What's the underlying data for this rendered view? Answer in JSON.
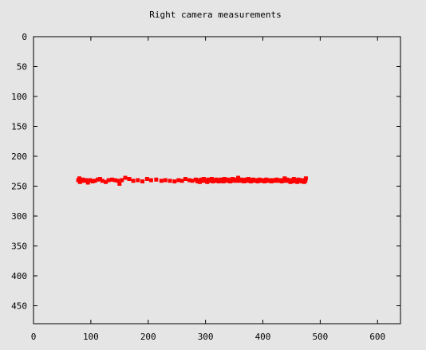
{
  "chart_data": {
    "type": "scatter",
    "title": "Right camera measurements",
    "xlabel": "",
    "ylabel": "",
    "xlim": [
      0,
      640
    ],
    "ylim": [
      0,
      480
    ],
    "y_inverted": true,
    "xticks": [
      0,
      100,
      200,
      300,
      400,
      500,
      600
    ],
    "yticks": [
      0,
      50,
      100,
      150,
      200,
      250,
      300,
      350,
      400,
      450
    ],
    "grid": false,
    "point_color": "#ff0000",
    "series": [
      {
        "points": [
          [
            78,
            240
          ],
          [
            80,
            237
          ],
          [
            81,
            243
          ],
          [
            83,
            241
          ],
          [
            86,
            239
          ],
          [
            89,
            241
          ],
          [
            92,
            240
          ],
          [
            95,
            244
          ],
          [
            99,
            240
          ],
          [
            103,
            242
          ],
          [
            107,
            241
          ],
          [
            112,
            239
          ],
          [
            116,
            238
          ],
          [
            120,
            241
          ],
          [
            126,
            243
          ],
          [
            131,
            240
          ],
          [
            137,
            239
          ],
          [
            142,
            240
          ],
          [
            147,
            241
          ],
          [
            150,
            246
          ],
          [
            154,
            240
          ],
          [
            160,
            236
          ],
          [
            167,
            238
          ],
          [
            174,
            241
          ],
          [
            182,
            240
          ],
          [
            190,
            242
          ],
          [
            198,
            238
          ],
          [
            205,
            240
          ],
          [
            214,
            239
          ],
          [
            223,
            241
          ],
          [
            230,
            240
          ],
          [
            238,
            241
          ],
          [
            246,
            242
          ],
          [
            253,
            240
          ],
          [
            259,
            241
          ],
          [
            265,
            238
          ],
          [
            272,
            240
          ],
          [
            277,
            241
          ],
          [
            283,
            239
          ],
          [
            286,
            242
          ],
          [
            288,
            240
          ],
          [
            290,
            243
          ],
          [
            293,
            239
          ],
          [
            295,
            241
          ],
          [
            297,
            238
          ],
          [
            299,
            241
          ],
          [
            301,
            240
          ],
          [
            303,
            243
          ],
          [
            305,
            239
          ],
          [
            307,
            241
          ],
          [
            309,
            240
          ],
          [
            311,
            238
          ],
          [
            313,
            242
          ],
          [
            315,
            240
          ],
          [
            317,
            241
          ],
          [
            319,
            239
          ],
          [
            321,
            240
          ],
          [
            323,
            242
          ],
          [
            325,
            241
          ],
          [
            327,
            239
          ],
          [
            329,
            240
          ],
          [
            331,
            242
          ],
          [
            333,
            238
          ],
          [
            335,
            240
          ],
          [
            337,
            241
          ],
          [
            339,
            239
          ],
          [
            341,
            240
          ],
          [
            343,
            242
          ],
          [
            345,
            240
          ],
          [
            347,
            238
          ],
          [
            349,
            241
          ],
          [
            351,
            240
          ],
          [
            353,
            239
          ],
          [
            355,
            241
          ],
          [
            357,
            236
          ],
          [
            359,
            240
          ],
          [
            361,
            241
          ],
          [
            363,
            239
          ],
          [
            365,
            240
          ],
          [
            367,
            242
          ],
          [
            369,
            240
          ],
          [
            371,
            239
          ],
          [
            373,
            241
          ],
          [
            375,
            238
          ],
          [
            377,
            240
          ],
          [
            379,
            242
          ],
          [
            381,
            240
          ],
          [
            383,
            239
          ],
          [
            385,
            241
          ],
          [
            388,
            240
          ],
          [
            391,
            242
          ],
          [
            394,
            239
          ],
          [
            397,
            241
          ],
          [
            400,
            240
          ],
          [
            403,
            242
          ],
          [
            406,
            239
          ],
          [
            409,
            241
          ],
          [
            412,
            240
          ],
          [
            415,
            242
          ],
          [
            418,
            240
          ],
          [
            421,
            241
          ],
          [
            424,
            239
          ],
          [
            427,
            241
          ],
          [
            430,
            240
          ],
          [
            433,
            242
          ],
          [
            436,
            240
          ],
          [
            438,
            237
          ],
          [
            440,
            241
          ],
          [
            442,
            239
          ],
          [
            444,
            241
          ],
          [
            446,
            240
          ],
          [
            448,
            243
          ],
          [
            450,
            240
          ],
          [
            452,
            242
          ],
          [
            454,
            238
          ],
          [
            456,
            241
          ],
          [
            458,
            240
          ],
          [
            460,
            243
          ],
          [
            462,
            239
          ],
          [
            464,
            241
          ],
          [
            466,
            240
          ],
          [
            468,
            242
          ],
          [
            470,
            240
          ],
          [
            472,
            243
          ],
          [
            474,
            241
          ],
          [
            475,
            237
          ]
        ]
      }
    ]
  }
}
